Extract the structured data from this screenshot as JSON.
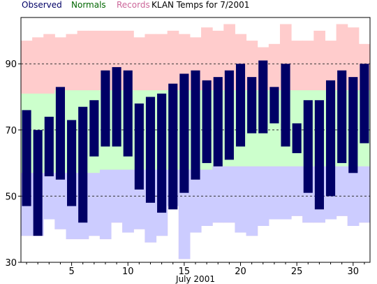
{
  "chart_data": {
    "type": "bar",
    "title": "KLAN Temps for 7/2001",
    "xlabel": "July 2001",
    "ylabel": "",
    "legend": [
      {
        "name": "Observed",
        "color": "#000066"
      },
      {
        "name": "Normals",
        "color": "#006600"
      },
      {
        "name": "Records",
        "color": "#cc6699"
      }
    ],
    "x": [
      1,
      2,
      3,
      4,
      5,
      6,
      7,
      8,
      9,
      10,
      11,
      12,
      13,
      14,
      15,
      16,
      17,
      18,
      19,
      20,
      21,
      22,
      23,
      24,
      25,
      26,
      27,
      28,
      29,
      30,
      31
    ],
    "xticks": [
      5,
      10,
      15,
      20,
      25,
      30
    ],
    "ylim": [
      30,
      104
    ],
    "yticks": [
      30,
      50,
      70,
      90
    ],
    "series": [
      {
        "name": "Observed",
        "color": "#000066",
        "high": [
          76,
          70,
          74,
          83,
          73,
          77,
          79,
          88,
          89,
          88,
          78,
          80,
          81,
          84,
          87,
          88,
          85,
          86,
          88,
          90,
          86,
          91,
          83,
          90,
          72,
          79,
          79,
          85,
          88,
          86,
          90
        ],
        "low": [
          47,
          38,
          56,
          55,
          47,
          42,
          62,
          65,
          65,
          62,
          52,
          48,
          45,
          46,
          51,
          55,
          60,
          59,
          61,
          65,
          69,
          69,
          72,
          65,
          63,
          51,
          46,
          50,
          60,
          57,
          66
        ]
      },
      {
        "name": "Normals",
        "color": "#ccffcc",
        "high": [
          81,
          81,
          81,
          82,
          82,
          82,
          82,
          82,
          82,
          82,
          82,
          82,
          82,
          82,
          82,
          82,
          82,
          82,
          82,
          82,
          82,
          82,
          82,
          82,
          82,
          82,
          82,
          82,
          82,
          82,
          82
        ],
        "low": [
          57,
          57,
          57,
          57,
          57,
          57,
          57,
          58,
          58,
          58,
          58,
          58,
          58,
          58,
          58,
          58,
          58,
          59,
          59,
          59,
          59,
          59,
          59,
          59,
          59,
          59,
          59,
          59,
          59,
          59,
          59
        ]
      },
      {
        "name": "Records",
        "color": "#ffcccc",
        "high": [
          97,
          98,
          99,
          98,
          99,
          100,
          100,
          100,
          100,
          100,
          98,
          99,
          99,
          100,
          99,
          98,
          101,
          100,
          102,
          99,
          97,
          95,
          96,
          102,
          97,
          97,
          100,
          97,
          102,
          101,
          96
        ],
        "low": [
          38,
          38,
          43,
          40,
          37,
          37,
          38,
          37,
          42,
          39,
          40,
          36,
          38,
          47,
          31,
          39,
          41,
          42,
          42,
          39,
          38,
          41,
          43,
          43,
          44,
          42,
          42,
          43,
          44,
          41,
          42
        ]
      }
    ],
    "grid": {
      "y_dashed_at": [
        50,
        70,
        90
      ]
    }
  }
}
